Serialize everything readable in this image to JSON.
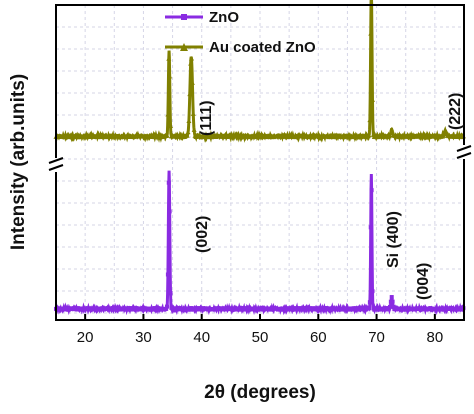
{
  "chart_data": {
    "type": "line",
    "xlabel": "2θ (degrees)",
    "ylabel": "Intensity (arb.units)",
    "xlim": [
      15,
      85
    ],
    "x_ticks": [
      20,
      30,
      40,
      50,
      60,
      70,
      80
    ],
    "y_ticks_shown": false,
    "grid": true,
    "axis_break": true,
    "legend_position": "top-left",
    "series": [
      {
        "name": "ZnO",
        "color": "#8a2be2",
        "marker": "square",
        "baseline": 0.03,
        "peaks": [
          {
            "x": 34.4,
            "height": 1.0,
            "width": 0.12
          },
          {
            "x": 69.1,
            "height": 0.98,
            "width": 0.1
          },
          {
            "x": 72.6,
            "height": 0.08,
            "width": 0.15
          }
        ]
      },
      {
        "name": "Au coated ZnO",
        "color": "#808000",
        "marker": "triangle",
        "baseline": 0.07,
        "peaks": [
          {
            "x": 34.4,
            "height": 0.62,
            "width": 0.12
          },
          {
            "x": 38.2,
            "height": 0.58,
            "width": 0.22
          },
          {
            "x": 69.1,
            "height": 1.05,
            "width": 0.12
          },
          {
            "x": 72.6,
            "height": 0.05,
            "width": 0.15
          },
          {
            "x": 81.8,
            "height": 0.04,
            "width": 0.2
          }
        ]
      }
    ],
    "annotations": [
      {
        "text": "(111)",
        "panel": "top"
      },
      {
        "text": "(222)",
        "panel": "top"
      },
      {
        "text": "(002)",
        "panel": "bottom"
      },
      {
        "text": "Si (400)",
        "panel": "bottom"
      },
      {
        "text": "(004)",
        "panel": "bottom"
      }
    ]
  }
}
